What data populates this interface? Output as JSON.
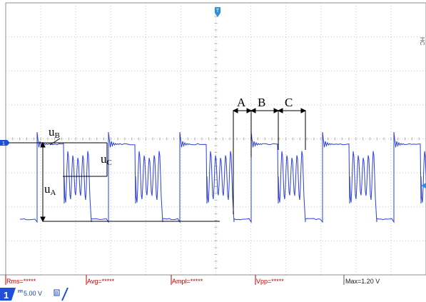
{
  "measurements": {
    "rms_label": "Rms=*****",
    "avg_label": "Avg=*****",
    "ampl_label": "Ampl=*****",
    "vpp_label": "Vpp=*****",
    "max_label": "Max=1.20 V"
  },
  "channel": {
    "number": "1",
    "scale": "5.00 V",
    "coupling_icon": "dc-coupling-icon",
    "bw_icon": "bandwidth-limit-icon"
  },
  "annotations": {
    "uA": {
      "base": "u",
      "sub": "A"
    },
    "uB": {
      "base": "u",
      "sub": "B"
    },
    "uC": {
      "base": "u",
      "sub": "C"
    },
    "interval_A": "A",
    "interval_B": "B",
    "interval_C": "C"
  },
  "side_text": "HC",
  "colors": {
    "trace": "#2b3fe0",
    "measurement_text": "#c00000",
    "channel_badge": "#1f4fd8",
    "grid": "#c8c8c8",
    "grid_border": "#8f8f8f"
  },
  "markers": {
    "trigger_position_icon": "trigger-position-marker-icon",
    "ground_marker_icon": "channel-ground-marker-icon",
    "trigger_level_icon": "trigger-level-marker-icon"
  }
}
